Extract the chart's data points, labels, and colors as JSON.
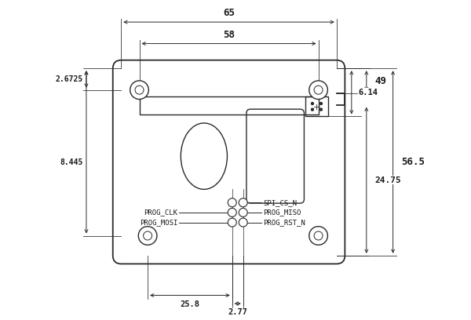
{
  "bg_color": "#ffffff",
  "line_color": "#2a2a2a",
  "dim_color": "#2a2a2a",
  "text_color": "#1a1a1a",
  "figsize": [
    6.0,
    4.08
  ],
  "dpi": 100,
  "labels": {
    "spi_cs_n": "SPI_CS_N",
    "prog_clk": "PROG_CLK",
    "prog_miso": "PROG_MISO",
    "prog_mosi": "PROG_MOSI",
    "prog_rst_n": "PROG_RST_N",
    "dim_65": "65",
    "dim_58": "58",
    "dim_56_5": "56.5",
    "dim_49": "49",
    "dim_6_14": "6.14",
    "dim_24_75": "24.75",
    "dim_2_6725": "2.6725",
    "dim_8_445": "8.445",
    "dim_25_8": "25.8",
    "dim_2_77": "2.77"
  }
}
